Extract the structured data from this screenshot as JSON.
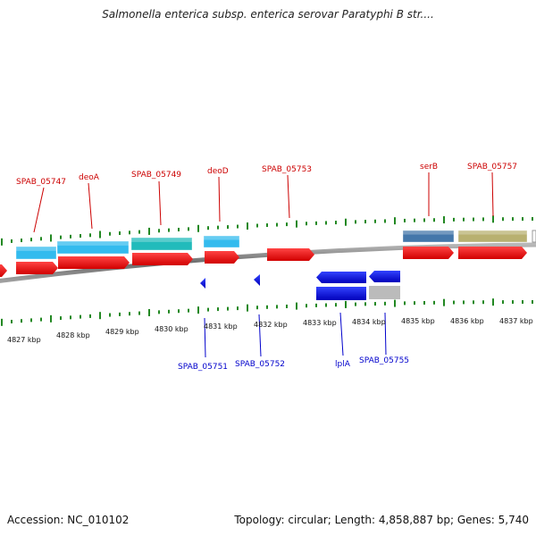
{
  "title": "Salmonella enterica subsp. enterica serovar Paratyphi B str....",
  "footer": {
    "accession": "Accession: NC_010102",
    "summary": "Topology: circular; Length: 4,858,887 bp; Genes: 5,740"
  },
  "colors": {
    "top_label": "#cc0000",
    "bottom_label": "#0000cc",
    "tick": "#228822",
    "backbone": "#8a8a8a"
  },
  "axis": {
    "units": "kbp",
    "labels": [
      "4827 kbp",
      "4828 kbp",
      "4829 kbp",
      "4830 kbp",
      "4831 kbp",
      "4832 kbp",
      "4833 kbp",
      "4834 kbp",
      "4835 kbp",
      "4836 kbp",
      "4837 kbp"
    ]
  },
  "top_labels": [
    "SPAB_05747",
    "deoA",
    "SPAB_05749",
    "deoD",
    "SPAB_05753",
    "serB",
    "SPAB_05757"
  ],
  "bottom_labels": [
    "SPAB_05751",
    "SPAB_05752",
    "lplA",
    "SPAB_05755"
  ],
  "feature_colors": [
    "#33bbee",
    "#22bbbb",
    "#4477aa",
    "#b8b070",
    "#ee1111",
    "#1122dd",
    "#bbbbbb"
  ]
}
